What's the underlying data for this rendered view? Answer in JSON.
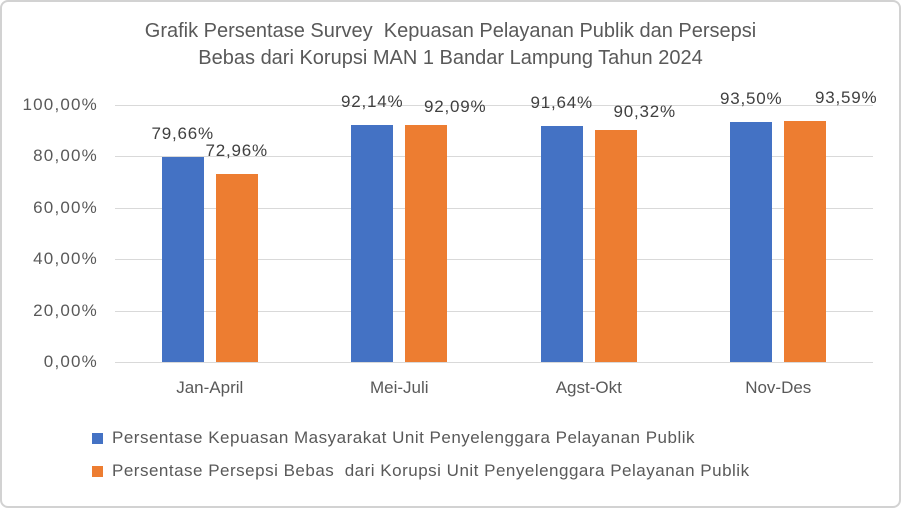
{
  "frame": {
    "background": "#ffffff",
    "border_color": "#d2d2d2"
  },
  "title": {
    "line1": "Grafik Persentase Survey  Kepuasan Pelayanan Publik dan Persepsi",
    "line2": "Bebas dari Korupsi MAN 1 Bandar Lampung Tahun 2024",
    "color": "#595959"
  },
  "chart_data": {
    "type": "bar",
    "title": "Grafik Persentase Survey Kepuasan Pelayanan Publik dan Persepsi Bebas dari Korupsi MAN 1 Bandar Lampung Tahun 2024",
    "categories": [
      "Jan-April",
      "Mei-Juli",
      "Agst-Okt",
      "Nov-Des"
    ],
    "series": [
      {
        "name": "Persentase Kepuasan Masyarakat Unit Penyelenggara Pelayanan Publik",
        "color": "#4472C4",
        "values": [
          79.66,
          92.14,
          91.64,
          93.5
        ],
        "value_labels": [
          "79,66%",
          "92,14%",
          "91,64%",
          "93,50%"
        ],
        "label_offsets": [
          [
            0,
            0
          ],
          [
            0,
            0
          ],
          [
            0,
            0
          ],
          [
            0,
            0
          ]
        ]
      },
      {
        "name": "Persentase Persepsi Bebas  dari Korupsi Unit Penyelenggara Pelayanan Publik",
        "color": "#ED7D31",
        "values": [
          72.96,
          92.09,
          90.32,
          93.59
        ],
        "value_labels": [
          "72,96%",
          "92,09%",
          "90,32%",
          "93,59%"
        ],
        "label_offsets": [
          [
            0,
            0
          ],
          [
            29,
            5
          ],
          [
            29,
            5
          ],
          [
            41,
            0
          ]
        ]
      }
    ],
    "ylim": [
      0,
      100
    ],
    "yticks": [
      0,
      20,
      40,
      60,
      80,
      100
    ],
    "ytick_labels": [
      "0,00%",
      "20,00%",
      "40,00%",
      "60,00%",
      "80,00%",
      "100,00%"
    ],
    "grid": true,
    "gridline_color": "#d9d9d9",
    "axis_text_color": "#595959",
    "data_label_color": "#404040",
    "legend_position": "bottom"
  }
}
